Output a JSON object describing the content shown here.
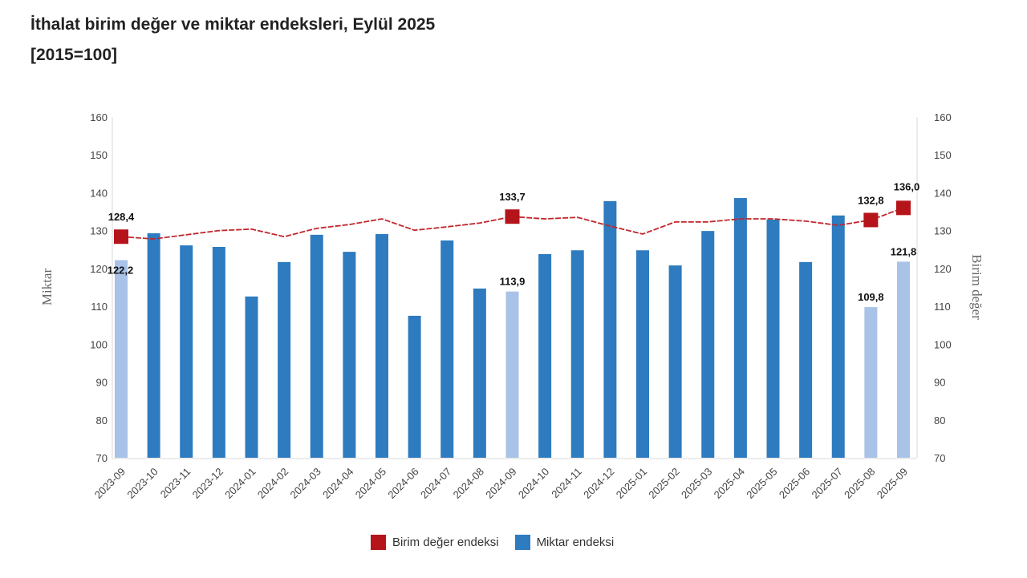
{
  "title_line1": "İthalat birim değer ve miktar endeksleri, Eylül 2025",
  "title_line2": "[2015=100]",
  "chart_data": {
    "type": "bar+line",
    "categories": [
      "2023-09",
      "2023-10",
      "2023-11",
      "2023-12",
      "2024-01",
      "2024-02",
      "2024-03",
      "2024-04",
      "2024-05",
      "2024-06",
      "2024-07",
      "2024-08",
      "2024-09",
      "2024-10",
      "2024-11",
      "2024-12",
      "2025-01",
      "2025-02",
      "2025-03",
      "2025-04",
      "2025-05",
      "2025-06",
      "2025-07",
      "2025-08",
      "2025-09"
    ],
    "ylabel_left": "Miktar",
    "ylabel_right": "Birim değer",
    "ylim": [
      70,
      160
    ],
    "yticks": [
      70,
      80,
      90,
      100,
      110,
      120,
      130,
      140,
      150,
      160
    ],
    "grid": false,
    "legend_position": "bottom",
    "highlight_categories": [
      "2023-09",
      "2024-09",
      "2025-08",
      "2025-09"
    ],
    "series": [
      {
        "name": "Birim değer endeksi",
        "type": "line",
        "color": "#b5141b",
        "values": [
          128.4,
          127.8,
          128.9,
          130.0,
          130.4,
          128.4,
          130.6,
          131.6,
          133.1,
          130.1,
          131.0,
          132.0,
          133.7,
          133.1,
          133.5,
          131.2,
          129.1,
          132.3,
          132.3,
          133.1,
          133.1,
          132.5,
          131.4,
          132.8,
          136.0
        ],
        "labeled": {
          "2023-09": "128,4",
          "2024-09": "133,7",
          "2025-08": "132,8",
          "2025-09": "136,0"
        }
      },
      {
        "name": "Miktar endeksi",
        "type": "bar",
        "color": "#2e7bbf",
        "highlight_color": "#a9c2e8",
        "values": [
          122.2,
          129.3,
          126.1,
          125.7,
          112.6,
          121.7,
          128.9,
          124.4,
          129.1,
          107.5,
          127.4,
          114.7,
          113.9,
          123.8,
          124.8,
          137.8,
          124.8,
          120.8,
          129.9,
          138.6,
          132.9,
          121.7,
          134.0,
          109.8,
          121.8
        ],
        "labeled": {
          "2023-09": "122,2",
          "2024-09": "113,9",
          "2025-08": "109,8",
          "2025-09": "121,8"
        }
      }
    ]
  }
}
